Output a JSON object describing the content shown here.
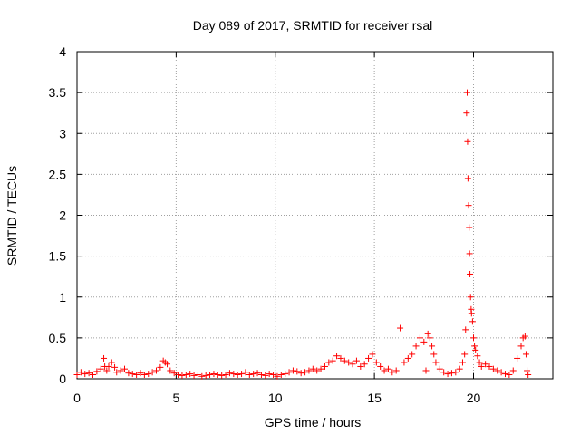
{
  "chart_data": {
    "type": "scatter",
    "title": "Day 089 of 2017, SRMTID for receiver rsal",
    "xlabel": "GPS time / hours",
    "ylabel": "SRMTID / TECUs",
    "xlim": [
      0,
      24
    ],
    "ylim": [
      0,
      4
    ],
    "xticks": [
      0,
      5,
      10,
      15,
      20
    ],
    "xtick_labels": [
      "0",
      "5",
      "10",
      "15",
      "20"
    ],
    "yticks": [
      0,
      0.5,
      1,
      1.5,
      2,
      2.5,
      3,
      3.5,
      4
    ],
    "ytick_labels": [
      "0",
      "0.5",
      "1",
      "1.5",
      "2",
      "2.5",
      "3",
      "3.5",
      "4"
    ],
    "grid": true,
    "marker": "+",
    "series": [
      {
        "name": "SRMTID",
        "color": "#ff0000",
        "x": [
          0.0,
          0.2,
          0.4,
          0.6,
          0.8,
          1.0,
          1.2,
          1.35,
          1.4,
          1.5,
          1.6,
          1.75,
          1.9,
          2.0,
          2.2,
          2.4,
          2.6,
          2.8,
          3.0,
          3.2,
          3.4,
          3.6,
          3.8,
          4.0,
          4.2,
          4.35,
          4.45,
          4.55,
          4.7,
          4.9,
          5.1,
          5.3,
          5.5,
          5.7,
          5.9,
          6.1,
          6.3,
          6.5,
          6.7,
          6.9,
          7.1,
          7.3,
          7.5,
          7.7,
          7.9,
          8.1,
          8.3,
          8.5,
          8.7,
          8.9,
          9.1,
          9.3,
          9.5,
          9.7,
          9.9,
          10.1,
          10.3,
          10.5,
          10.7,
          10.9,
          11.1,
          11.3,
          11.5,
          11.7,
          11.9,
          12.1,
          12.3,
          12.5,
          12.7,
          12.9,
          13.1,
          13.3,
          13.5,
          13.7,
          13.9,
          14.1,
          14.3,
          14.5,
          14.7,
          14.9,
          15.1,
          15.3,
          15.5,
          15.7,
          15.9,
          16.1,
          16.3,
          16.5,
          16.7,
          16.9,
          17.1,
          17.3,
          17.5,
          17.6,
          17.7,
          17.8,
          17.9,
          18.0,
          18.1,
          18.3,
          18.5,
          18.7,
          18.9,
          19.1,
          19.3,
          19.45,
          19.55,
          19.6,
          19.65,
          19.68,
          19.7,
          19.72,
          19.75,
          19.78,
          19.8,
          19.82,
          19.85,
          19.88,
          19.9,
          19.95,
          20.0,
          20.05,
          20.1,
          20.2,
          20.3,
          20.4,
          20.6,
          20.8,
          21.0,
          21.2,
          21.4,
          21.6,
          21.8,
          22.0,
          22.2,
          22.4,
          22.5,
          22.6,
          22.65,
          22.7,
          22.75
        ],
        "y": [
          0.05,
          0.08,
          0.06,
          0.07,
          0.05,
          0.09,
          0.12,
          0.25,
          0.15,
          0.1,
          0.15,
          0.2,
          0.14,
          0.08,
          0.1,
          0.12,
          0.07,
          0.06,
          0.05,
          0.07,
          0.05,
          0.06,
          0.08,
          0.1,
          0.14,
          0.22,
          0.2,
          0.18,
          0.1,
          0.07,
          0.05,
          0.04,
          0.05,
          0.06,
          0.04,
          0.05,
          0.03,
          0.04,
          0.05,
          0.06,
          0.05,
          0.04,
          0.05,
          0.07,
          0.06,
          0.05,
          0.06,
          0.08,
          0.05,
          0.06,
          0.07,
          0.05,
          0.04,
          0.06,
          0.05,
          0.03,
          0.05,
          0.06,
          0.08,
          0.1,
          0.09,
          0.07,
          0.08,
          0.1,
          0.12,
          0.1,
          0.12,
          0.15,
          0.2,
          0.22,
          0.28,
          0.25,
          0.22,
          0.2,
          0.18,
          0.22,
          0.15,
          0.18,
          0.25,
          0.3,
          0.2,
          0.15,
          0.1,
          0.12,
          0.08,
          0.1,
          0.62,
          0.2,
          0.25,
          0.3,
          0.4,
          0.5,
          0.45,
          0.1,
          0.55,
          0.5,
          0.4,
          0.3,
          0.2,
          0.12,
          0.08,
          0.06,
          0.07,
          0.08,
          0.12,
          0.2,
          0.3,
          0.6,
          3.25,
          3.5,
          2.9,
          2.45,
          2.12,
          1.85,
          1.53,
          1.28,
          1.0,
          0.85,
          0.8,
          0.7,
          0.5,
          0.4,
          0.35,
          0.28,
          0.2,
          0.15,
          0.18,
          0.15,
          0.12,
          0.1,
          0.08,
          0.06,
          0.05,
          0.1,
          0.25,
          0.4,
          0.5,
          0.52,
          0.3,
          0.1,
          0.05
        ]
      }
    ]
  }
}
